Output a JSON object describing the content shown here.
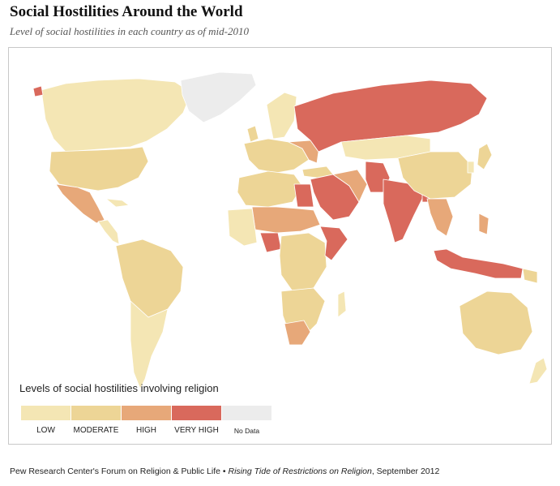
{
  "title": "Social Hostilities Around the World",
  "subtitle": "Level of social hostilities in each country as of mid-2010",
  "colors": {
    "low": "#f4e6b4",
    "moderate": "#edd596",
    "high": "#e7a879",
    "very_high": "#d9695c",
    "no_data": "#ececec",
    "border": "#ffffff"
  },
  "legend": {
    "title": "Levels of social hostilities involving religion",
    "items": [
      {
        "label": "LOW",
        "color": "#f4e6b4"
      },
      {
        "label": "MODERATE",
        "color": "#edd596"
      },
      {
        "label": "HIGH",
        "color": "#e7a879"
      },
      {
        "label": "VERY HIGH",
        "color": "#d9695c"
      },
      {
        "label": "No Data",
        "color": "#ececec"
      }
    ]
  },
  "footer": {
    "source": "Pew Research Center's Forum on Religion & Public Life",
    "bullet": "•",
    "report": "Rising Tide of Restrictions on Religion",
    "date": ", September 2012"
  }
}
